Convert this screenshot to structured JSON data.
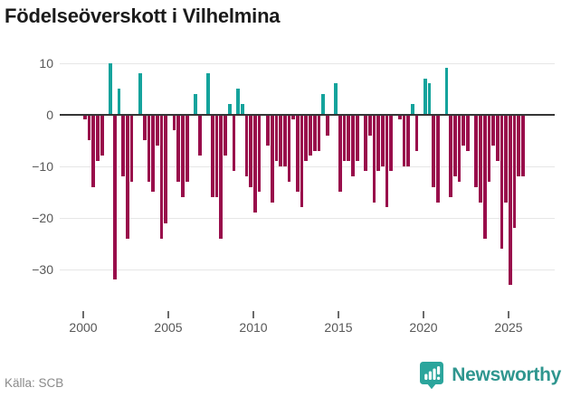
{
  "title": "Födelseöverskott i Vilhelmina",
  "source": "Källa: SCB",
  "brand": {
    "name": "Newsworthy"
  },
  "colors": {
    "positive_bar": "#14a39c",
    "negative_bar": "#990d4b",
    "zero_axis": "#363636",
    "gridline": "#e6e6e6",
    "axis_label": "#575757",
    "title_text": "#1b1b1b",
    "source_text": "#8a8a8a",
    "brand_teal": "#2ba59c",
    "brand_text": "#2f968f"
  },
  "chart_data": {
    "type": "bar",
    "title": "Födelseöverskott i Vilhelmina",
    "frequency": "quarterly",
    "period_start": "2000 Q1",
    "period_end": "2025 Q4",
    "values": [
      -1,
      -5,
      -14,
      -9,
      -8,
      0,
      10,
      -32,
      5,
      -12,
      -24,
      -13,
      0,
      8,
      -5,
      -13,
      -15,
      -6,
      -24,
      -21,
      0,
      -3,
      -13,
      -16,
      -13,
      0,
      4,
      -8,
      0,
      8,
      -16,
      -16,
      -24,
      -8,
      2,
      -11,
      5,
      2,
      -12,
      -14,
      -19,
      -15,
      0,
      -6,
      -17,
      -9,
      -10,
      -10,
      -13,
      -1,
      -15,
      -18,
      -9,
      -8,
      -7,
      -7,
      4,
      -4,
      0,
      6,
      -15,
      -9,
      -9,
      -12,
      -9,
      0,
      -11,
      -4,
      -17,
      -11,
      -10,
      -18,
      -11,
      0,
      -1,
      -10,
      -10,
      2,
      -7,
      0,
      7,
      6,
      -14,
      -17,
      0,
      9,
      -16,
      -12,
      -13,
      -6,
      -7,
      0,
      -14,
      -17,
      -24,
      -13,
      -6,
      -9,
      -26,
      -17,
      -33,
      -22,
      -12,
      -12
    ],
    "yticks": [
      {
        "value": 10,
        "label": "10"
      },
      {
        "value": 0,
        "label": "0"
      },
      {
        "value": -10,
        "label": "−10"
      },
      {
        "value": -20,
        "label": "−20"
      },
      {
        "value": -30,
        "label": "−30"
      }
    ],
    "xticks": [
      {
        "year": 2000,
        "label": "2000"
      },
      {
        "year": 2005,
        "label": "2005"
      },
      {
        "year": 2010,
        "label": "2010"
      },
      {
        "year": 2015,
        "label": "2015"
      },
      {
        "year": 2020,
        "label": "2020"
      },
      {
        "year": 2025,
        "label": "2025"
      }
    ],
    "ylim": [
      -35,
      12
    ],
    "grid": true,
    "legend": false
  }
}
